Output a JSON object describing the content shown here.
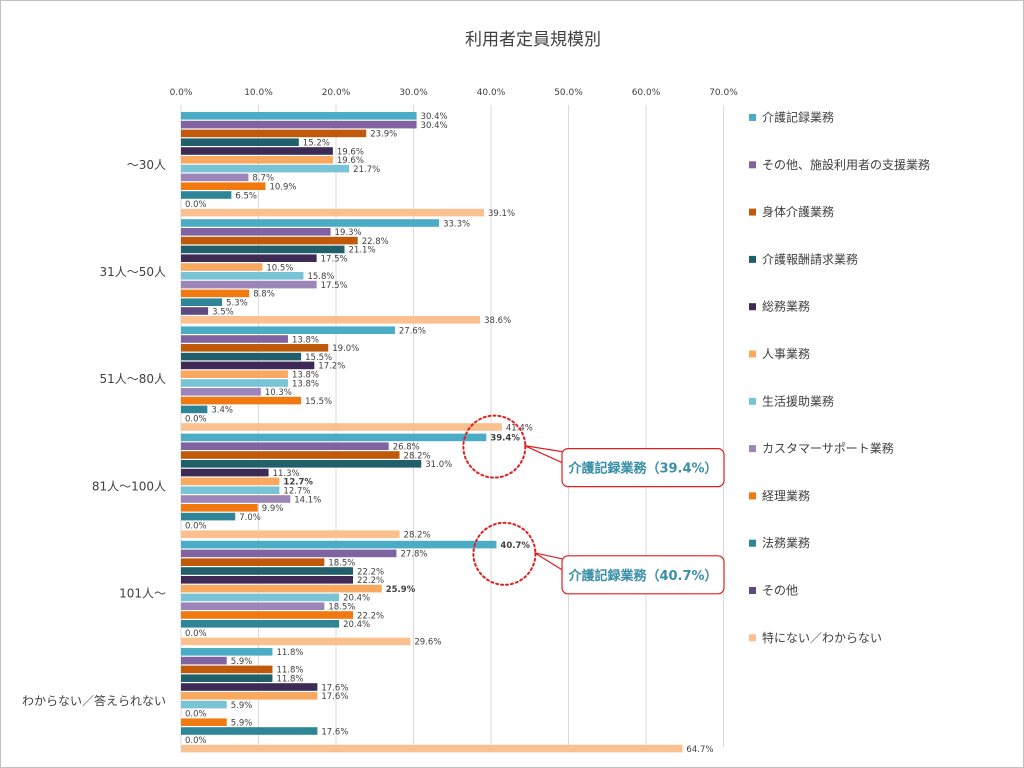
{
  "chart_data": {
    "type": "bar",
    "orientation": "horizontal",
    "title": "利用者定員規模別",
    "xlabel": "",
    "ylabel": "",
    "xlim": [
      0,
      70
    ],
    "x_ticks": [
      "0.0%",
      "10.0%",
      "20.0%",
      "30.0%",
      "40.0%",
      "50.0%",
      "60.0%",
      "70.0%"
    ],
    "grid": true,
    "legend_position": "right",
    "categories": [
      "～30人",
      "31人～50人",
      "51人～80人",
      "81人～100人",
      "101人～",
      "わからない／答えられない"
    ],
    "series": [
      {
        "name": "介護記録業務",
        "color": "#4bacc6",
        "values": [
          30.4,
          33.3,
          27.6,
          39.4,
          40.7,
          11.8
        ]
      },
      {
        "name": "その他、施設利用者の支援業務",
        "color": "#8064a2",
        "values": [
          30.4,
          19.3,
          13.8,
          26.8,
          27.8,
          5.9
        ]
      },
      {
        "name": "身体介護業務",
        "color": "#c0590a",
        "values": [
          23.9,
          22.8,
          19.0,
          28.2,
          18.5,
          11.8
        ]
      },
      {
        "name": "介護報酬請求業務",
        "color": "#215f6b",
        "values": [
          15.2,
          21.1,
          15.5,
          31.0,
          22.2,
          11.8
        ]
      },
      {
        "name": "総務業務",
        "color": "#3d2b55",
        "values": [
          19.6,
          17.5,
          17.2,
          11.3,
          22.2,
          17.6
        ]
      },
      {
        "name": "人事業務",
        "color": "#f9a95f",
        "values": [
          19.6,
          10.5,
          13.8,
          12.7,
          25.9,
          17.6
        ]
      },
      {
        "name": "生活援助業務",
        "color": "#78c3d6",
        "values": [
          21.7,
          15.8,
          13.8,
          12.7,
          20.4,
          5.9
        ]
      },
      {
        "name": "カスタマーサポート業務",
        "color": "#9c85b8",
        "values": [
          8.7,
          17.5,
          10.3,
          14.1,
          18.5,
          0.0
        ]
      },
      {
        "name": "経理業務",
        "color": "#f07a10",
        "values": [
          10.9,
          8.8,
          15.5,
          9.9,
          22.2,
          5.9
        ]
      },
      {
        "name": "法務業務",
        "color": "#2e8597",
        "values": [
          6.5,
          5.3,
          3.4,
          7.0,
          20.4,
          17.6
        ]
      },
      {
        "name": "その他",
        "color": "#5c4a80",
        "values": [
          0.0,
          3.5,
          0.0,
          0.0,
          0.0,
          0.0
        ]
      },
      {
        "name": "特にない／わからない",
        "color": "#fac090",
        "values": [
          39.1,
          38.6,
          41.4,
          28.2,
          29.6,
          64.7
        ]
      }
    ],
    "data_labels": [
      [
        "30.4%",
        "30.4%",
        "23.9%",
        "15.2%",
        "19.6%",
        "19.6%",
        "21.7%",
        "8.7%",
        "10.9%",
        "6.5%",
        "0.0%",
        "39.1%"
      ],
      [
        "33.3%",
        "19.3%",
        "22.8%",
        "21.1%",
        "17.5%",
        "10.5%",
        "15.8%",
        "17.5%",
        "8.8%",
        "5.3%",
        "3.5%",
        "38.6%"
      ],
      [
        "27.6%",
        "13.8%",
        "19.0%",
        "15.5%",
        "17.2%",
        "13.8%",
        "13.8%",
        "10.3%",
        "15.5%",
        "3.4%",
        "0.0%",
        "41.4%"
      ],
      [
        "39.4%",
        "26.8%",
        "28.2%",
        "31.0%",
        "11.3%",
        "12.7%",
        "12.7%",
        "14.1%",
        "9.9%",
        "7.0%",
        "0.0%",
        "28.2%"
      ],
      [
        "40.7%",
        "27.8%",
        "18.5%",
        "22.2%",
        "22.2%",
        "25.9%",
        "20.4%",
        "18.5%",
        "22.2%",
        "20.4%",
        "0.0%",
        "29.6%"
      ],
      [
        "11.8%",
        "5.9%",
        "11.8%",
        "11.8%",
        "17.6%",
        "17.6%",
        "5.9%",
        "0.0%",
        "5.9%",
        "17.6%",
        "0.0%",
        "64.7%"
      ]
    ],
    "highlight_labels": [
      [
        3,
        0
      ],
      [
        4,
        0
      ],
      [
        3,
        5
      ],
      [
        4,
        5
      ]
    ],
    "annotations": [
      {
        "text": "介護記録業務（39.4%）",
        "category_index": 3,
        "series_index": 0
      },
      {
        "text": "介護記録業務（40.7%）",
        "category_index": 4,
        "series_index": 0
      }
    ]
  },
  "colors": {
    "callout_border": "#e01f1f",
    "callout_text": "#3a8fa8",
    "grid": "#d9d9d9"
  }
}
